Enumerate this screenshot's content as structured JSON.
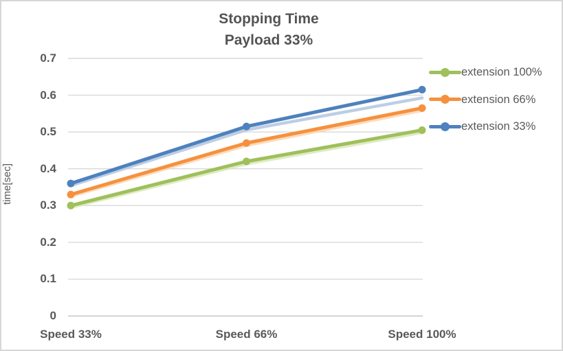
{
  "title": {
    "line1": "Stopping Time",
    "line2": "Payload 33%"
  },
  "chart_data": {
    "type": "line",
    "title": "Stopping Time",
    "subtitle": "Payload 33%",
    "categories": [
      "Speed 33%",
      "Speed 66%",
      "Speed 100%"
    ],
    "series": [
      {
        "name": "extension 100%",
        "color": "#9FC05A",
        "shadow_color": "#D8E6B6",
        "values": [
          0.3,
          0.42,
          0.505
        ]
      },
      {
        "name": "extension 66%",
        "color": "#F5913E",
        "shadow_color": "#FBD3AD",
        "values": [
          0.33,
          0.47,
          0.565
        ]
      },
      {
        "name": "extension 33%",
        "color": "#4E81BD",
        "shadow_color": "#B9CBE4",
        "values": [
          0.36,
          0.515,
          0.615
        ]
      }
    ],
    "xlabel": "",
    "ylabel": "time[sec]",
    "ylim": [
      0,
      0.7
    ],
    "ytick_step": 0.1,
    "yticks": [
      "0.7",
      "0.6",
      "0.5",
      "0.4",
      "0.3",
      "0.2",
      "0.1",
      "0"
    ],
    "grid": true,
    "grid_color": "#D9D9D9",
    "zero_line_color": "#C6C6C6",
    "axis_text_color": "#595959",
    "legend_position": "right",
    "legend": [
      "extension 100%",
      "extension 66%",
      "extension 33%"
    ]
  }
}
